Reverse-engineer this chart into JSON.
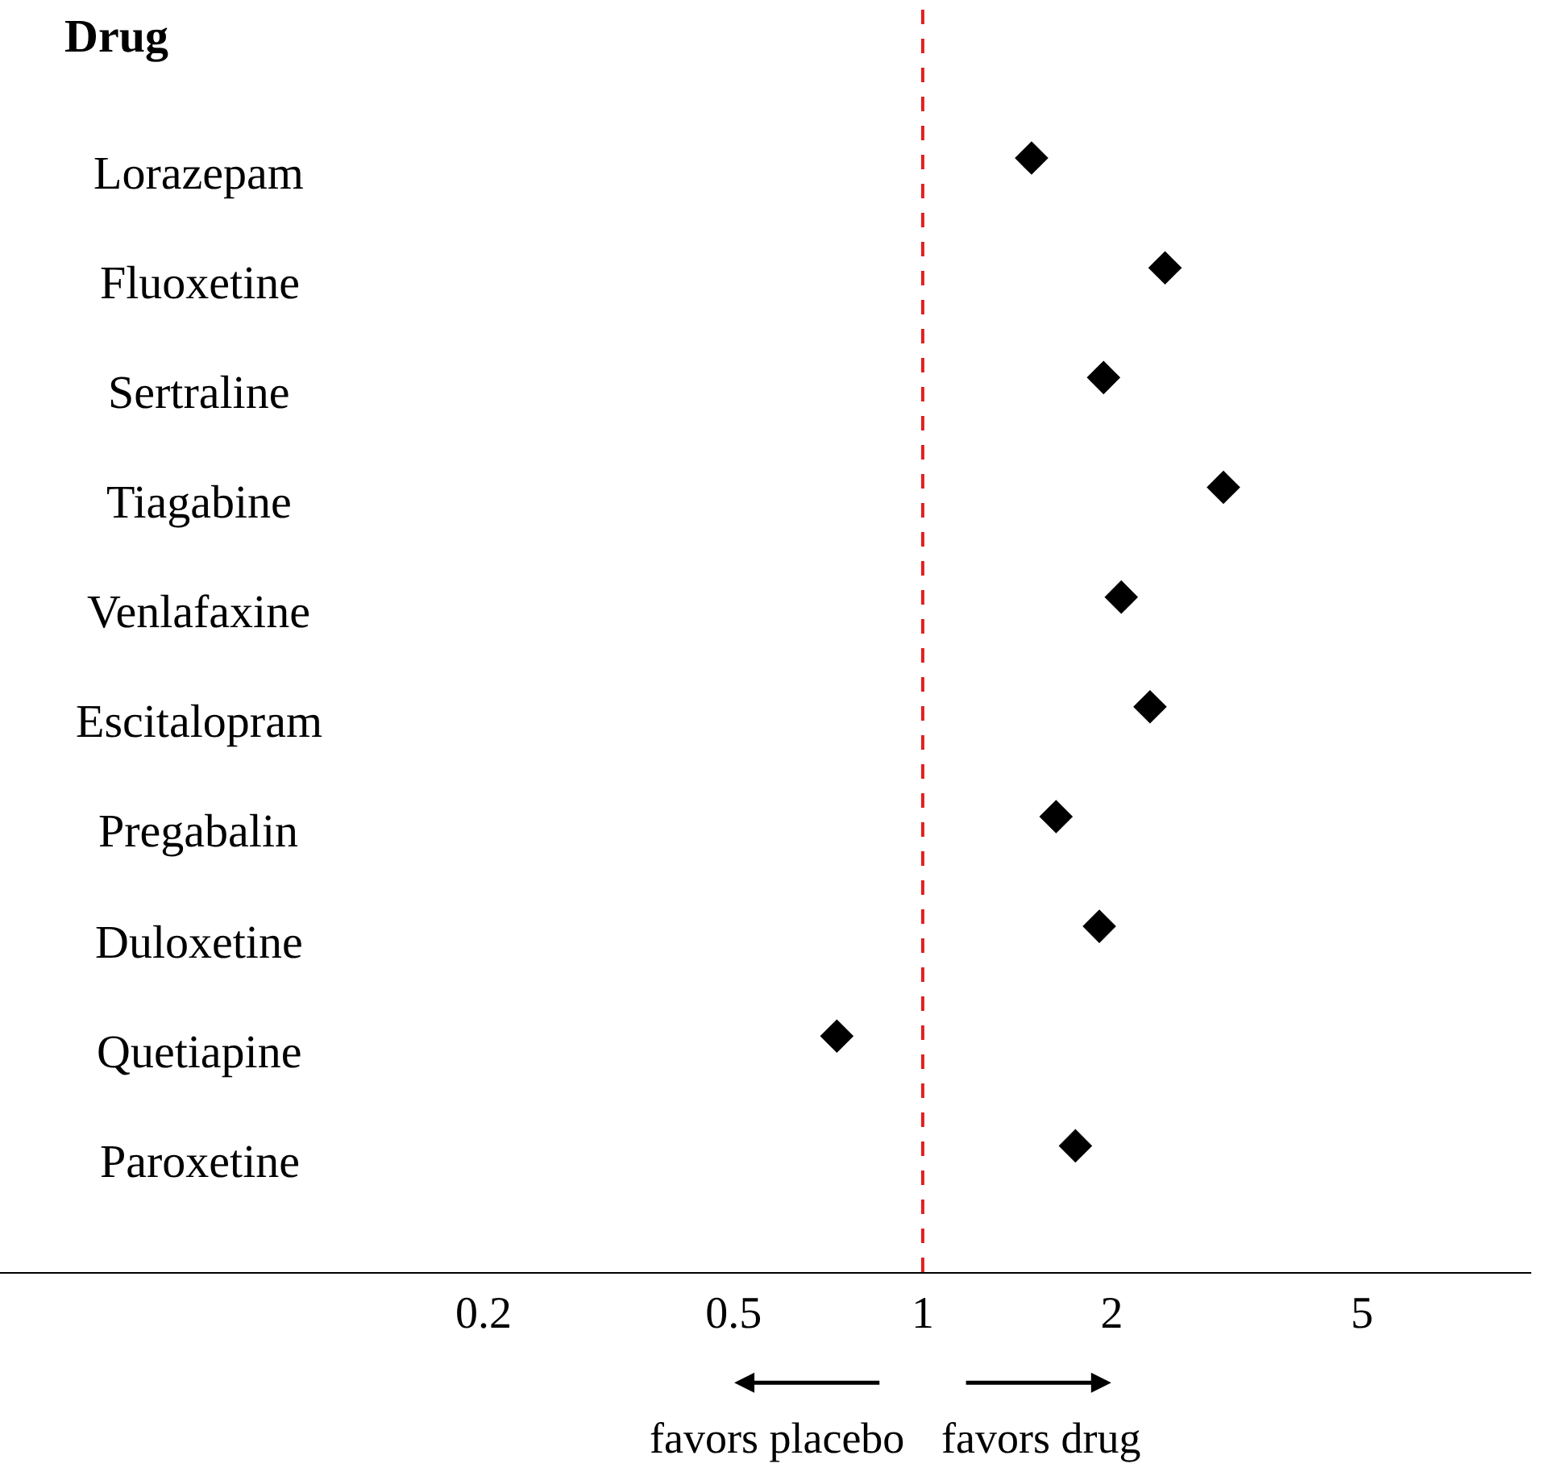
{
  "chart_data": {
    "type": "scatter",
    "ylabel": "Drug",
    "categories": [
      "Lorazepam",
      "Fluoxetine",
      "Sertraline",
      "Tiagabine",
      "Venlafaxine",
      "Escitalopram",
      "Pregabalin",
      "Duloxetine",
      "Quetiapine",
      "Paroxetine"
    ],
    "orientation": "horizontal",
    "values": [
      1.49,
      2.43,
      1.94,
      3.01,
      2.07,
      2.3,
      1.63,
      1.91,
      0.73,
      1.75
    ],
    "color": "#000000",
    "marker": "diamond",
    "log": "x",
    "xlim": [
      0.034,
      9.3
    ],
    "xticks": [
      0.2,
      0.5,
      1,
      2,
      5
    ],
    "ref_lines": [
      {
        "axis": "x",
        "value": 1,
        "color": "#e02020",
        "line_style": "dashed"
      }
    ],
    "annotations": [
      "favors placebo",
      "favors drug"
    ]
  }
}
